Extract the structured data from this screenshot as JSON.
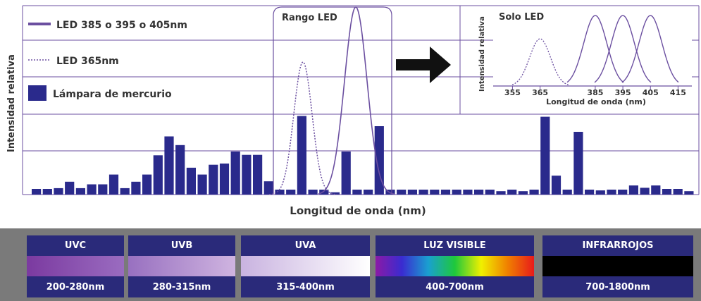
{
  "chart_data": {
    "type": "bar",
    "ylabel": "Intensidad relativa",
    "xlabel": "Longitud de onda (nm)",
    "legend": {
      "placement": "top-left",
      "entries": [
        {
          "label": "LED 385 o 395 o 405nm",
          "style": "solid-line",
          "color": "#6b4fa0"
        },
        {
          "label": "LED 365nm",
          "style": "dotted-line",
          "color": "#6b4fa0"
        },
        {
          "label": "Lámpara de mercurio",
          "style": "bar",
          "color": "#2a2a8c"
        }
      ]
    },
    "mercury_bars": [
      1.5,
      1.5,
      1.7,
      3.4,
      1.7,
      2.7,
      2.7,
      5.3,
      1.7,
      3.4,
      5.3,
      10.4,
      15.4,
      13.1,
      7.1,
      5.3,
      7.9,
      8.2,
      11.4,
      10.5,
      10.5,
      3.5,
      1.3,
      1.3,
      20.8,
      1.3,
      1.3,
      0.6,
      11.4,
      1.3,
      1.3,
      18.1,
      1.3,
      1.3,
      1.3,
      1.3,
      1.3,
      1.3,
      1.3,
      1.3,
      1.3,
      1.3,
      0.9,
      1.3,
      0.9,
      1.3,
      20.6,
      5.0,
      1.3,
      16.6,
      1.3,
      1.1,
      1.3,
      1.3,
      2.4,
      1.8,
      2.4,
      1.5,
      1.5,
      0.9
    ],
    "ylim": [
      0,
      50
    ],
    "inset_rango": {
      "label": "Rango LED"
    },
    "inset_solo": {
      "title": "Solo LED",
      "ylabel": "Intensidad relativa",
      "xlabel": "Longitud de onda (nm)",
      "ticks": [
        "355",
        "365",
        "385",
        "395",
        "405",
        "415"
      ],
      "led365_peak_nm": 365,
      "led_peaks_nm": [
        385,
        395,
        405
      ],
      "xlim": [
        348,
        420
      ]
    },
    "bands": [
      {
        "name": "UVC",
        "range": "200-280nm",
        "colors": [
          "#7b3aa0",
          "#9a6cc0"
        ]
      },
      {
        "name": "UVB",
        "range": "280-315nm",
        "colors": [
          "#9870c0",
          "#cfb4e0"
        ]
      },
      {
        "name": "UVA",
        "range": "315-400nm",
        "colors": [
          "#c9b3e0",
          "#ffffff"
        ]
      },
      {
        "name": "LUZ VISIBLE",
        "range": "400-700nm",
        "colors": [
          "#8b1aa6",
          "#3a2bd0",
          "#1aa0d0",
          "#1ec83c",
          "#f0f000",
          "#f08000",
          "#e81a1a"
        ]
      },
      {
        "name": "INFRARROJOS",
        "range": "700-1800nm",
        "colors": [
          "#000000",
          "#000000"
        ]
      }
    ]
  }
}
